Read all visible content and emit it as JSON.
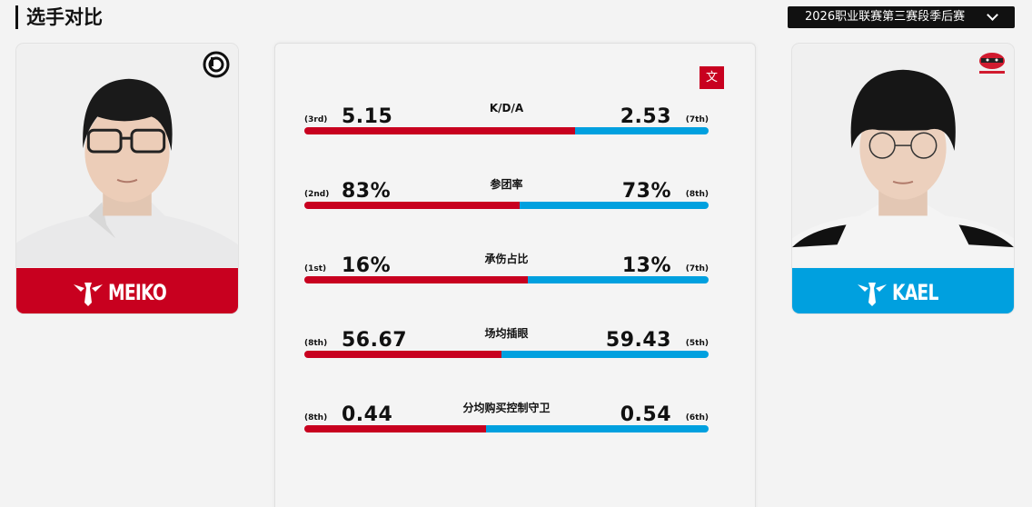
{
  "page": {
    "title": "选手对比"
  },
  "season_select": {
    "value": "2026职业联赛第三赛段季后赛"
  },
  "lang_button": {
    "label": "文"
  },
  "players": {
    "left": {
      "name": "MEIKO",
      "team_logo_icon": "ig-logo-icon",
      "color": "#c8001f"
    },
    "right": {
      "name": "KAEL",
      "team_logo_icon": "ninjas-in-pyjamas-logo-icon",
      "color": "#00a0df"
    }
  },
  "stats": [
    {
      "name": "K/D/A",
      "left_value": "5.15",
      "left_rank": "(3rd)",
      "right_value": "2.53",
      "right_rank": "(7th)",
      "left_share": 0.67
    },
    {
      "name": "参团率",
      "left_value": "83%",
      "left_rank": "(2nd)",
      "right_value": "73%",
      "right_rank": "(8th)",
      "left_share": 0.532
    },
    {
      "name": "承伤占比",
      "left_value": "16%",
      "left_rank": "(1st)",
      "right_value": "13%",
      "right_rank": "(7th)",
      "left_share": 0.552
    },
    {
      "name": "场均插眼",
      "left_value": "56.67",
      "left_rank": "(8th)",
      "right_value": "59.43",
      "right_rank": "(5th)",
      "left_share": 0.488
    },
    {
      "name": "分均购买控制守卫",
      "left_value": "0.44",
      "left_rank": "(8th)",
      "right_value": "0.54",
      "right_rank": "(6th)",
      "left_share": 0.449
    }
  ]
}
